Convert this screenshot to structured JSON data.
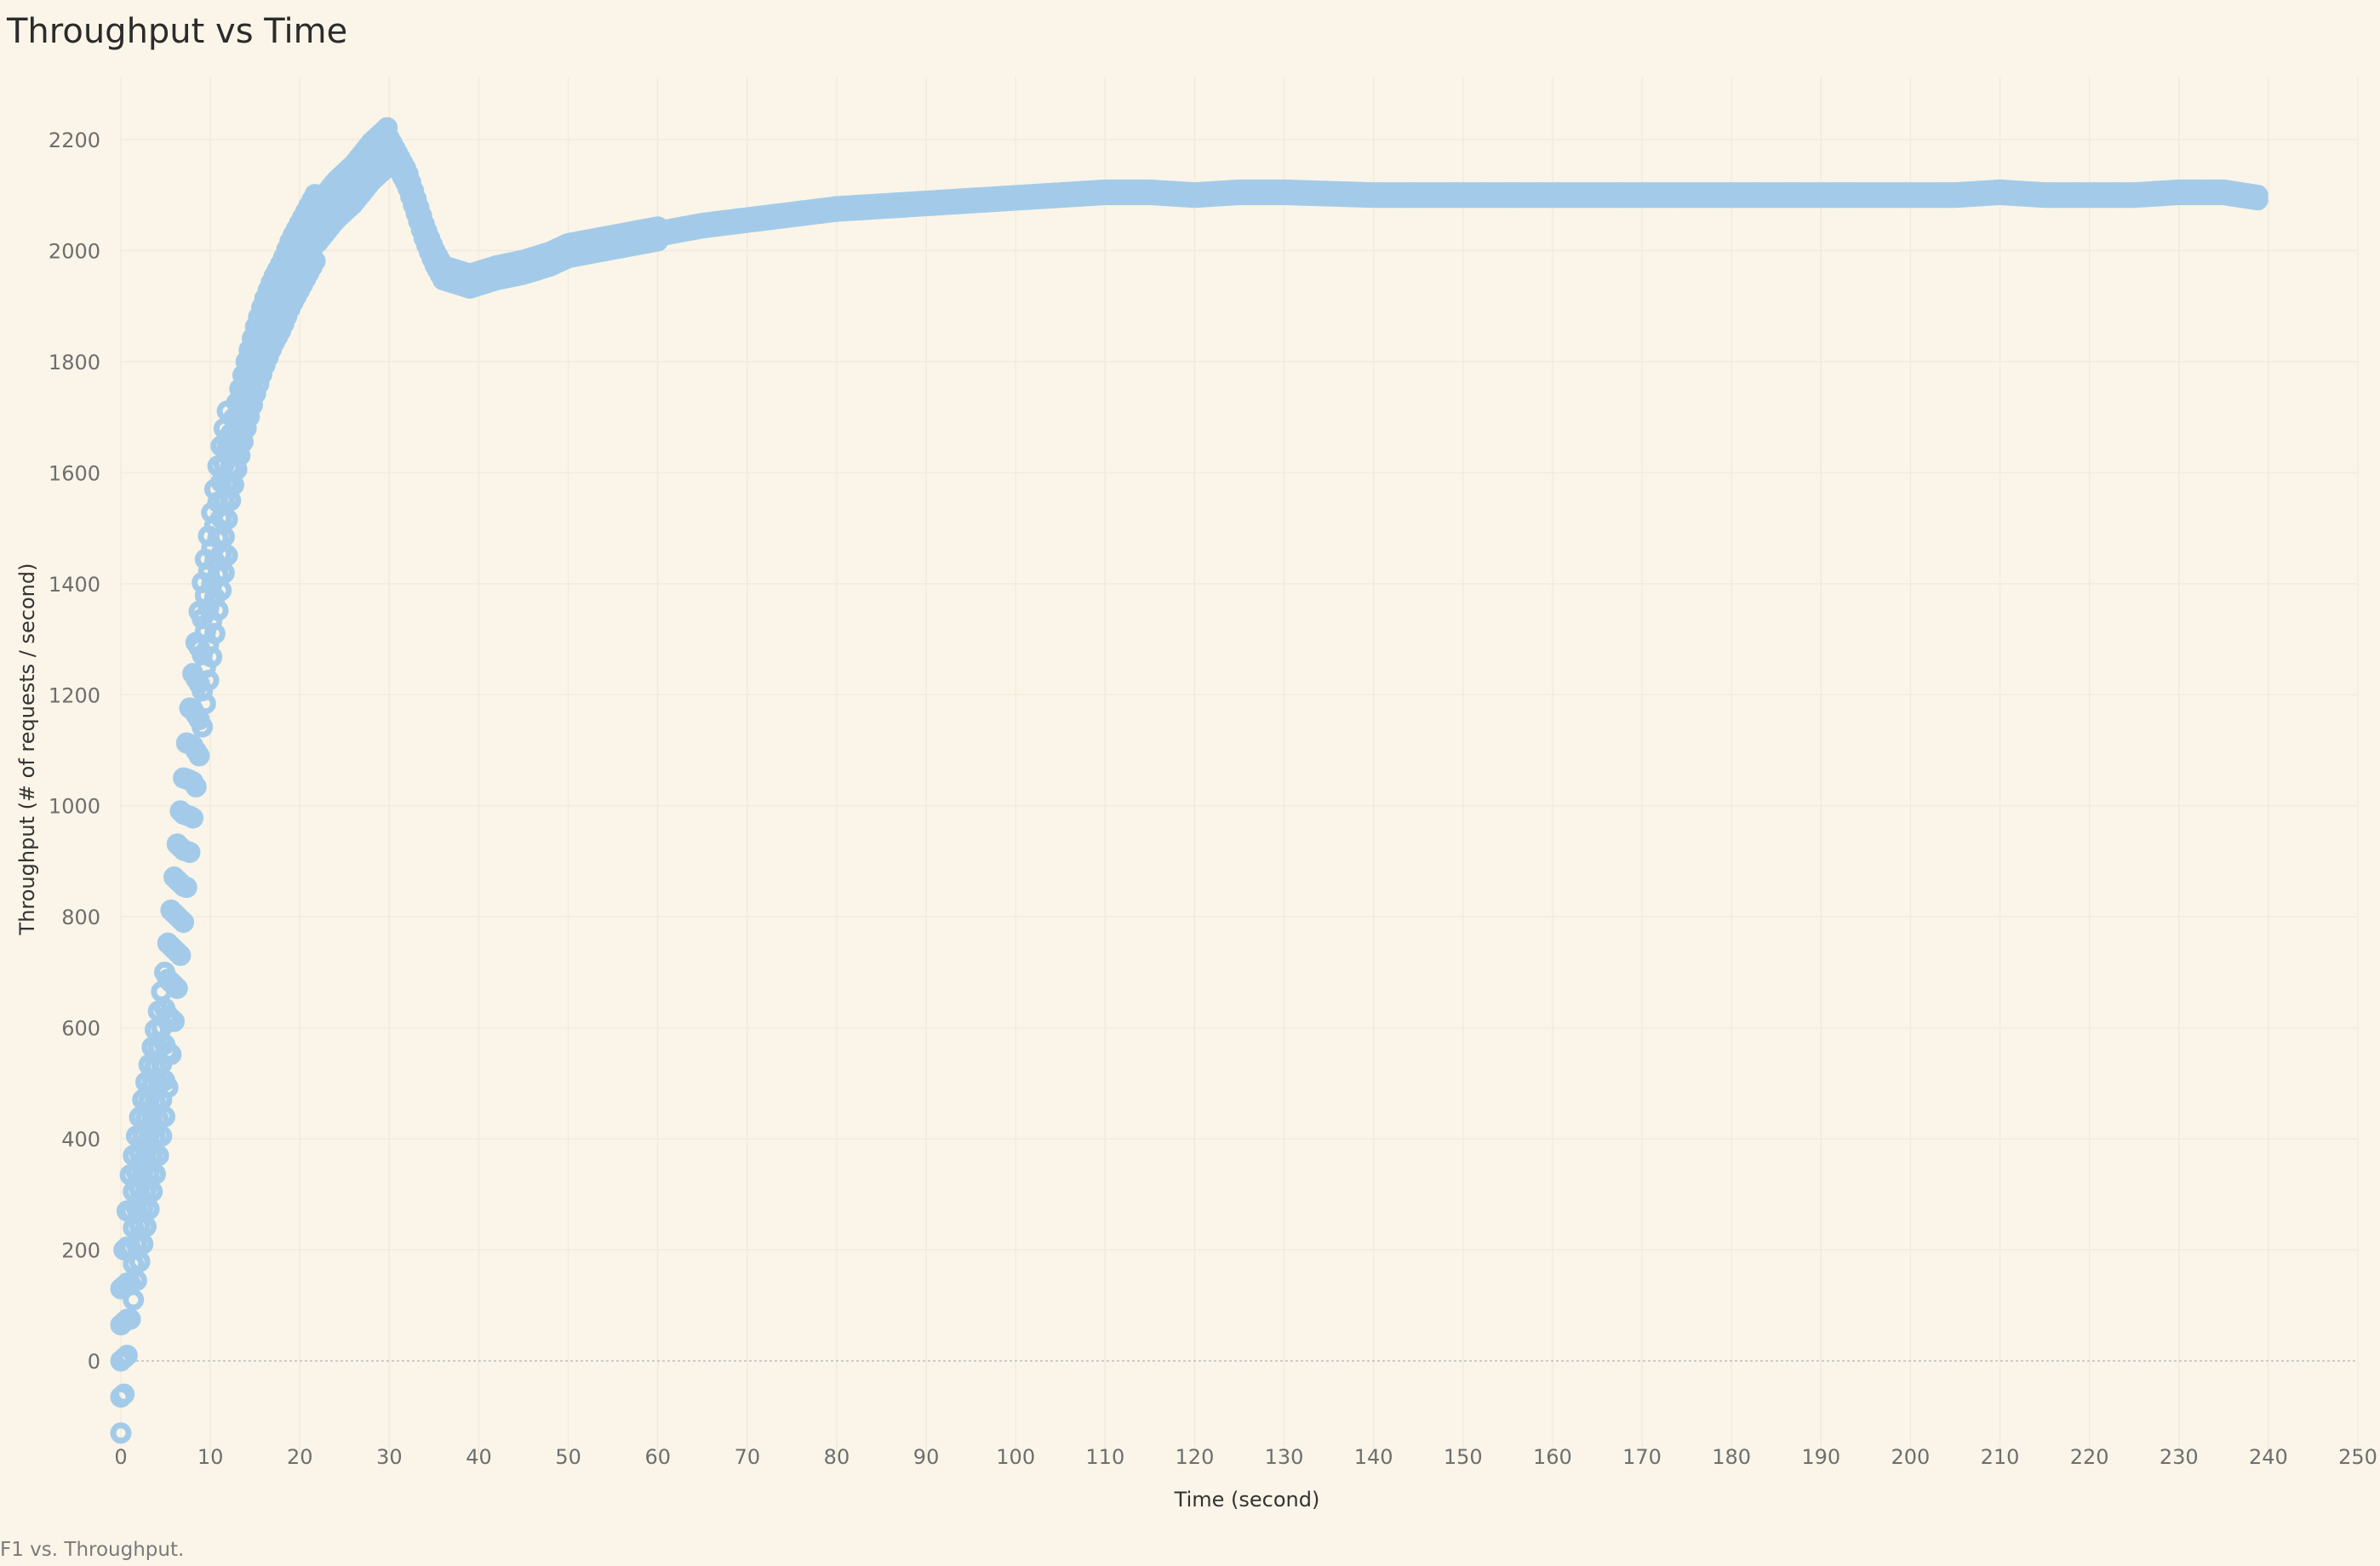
{
  "title": "Throughput vs Time",
  "caption": "F1 vs. Throughput.",
  "colors": {
    "background": "#faf5e8",
    "marker": "#a3cbe9",
    "gridline": "#f0ebdd",
    "zeroline": "#bdbdbd"
  },
  "chart_data": {
    "type": "scatter",
    "title": "Throughput vs Time",
    "xlabel": "Time (second)",
    "ylabel": "Throughput (# of requests / second)",
    "xlim": [
      0,
      250
    ],
    "ylim": [
      -110,
      2330
    ],
    "xticks": [
      0,
      10,
      20,
      30,
      40,
      50,
      60,
      70,
      80,
      90,
      100,
      110,
      120,
      130,
      140,
      150,
      160,
      170,
      180,
      190,
      200,
      210,
      220,
      230,
      240,
      250
    ],
    "yticks": [
      0,
      200,
      400,
      600,
      800,
      1000,
      1200,
      1400,
      1600,
      1800,
      2000,
      2200
    ],
    "grid": true,
    "marker": "hollow-circle",
    "series": [
      {
        "x": [
          0,
          1,
          2,
          3,
          4,
          5,
          6,
          7,
          8,
          9,
          10,
          11,
          12,
          13,
          14,
          15,
          16,
          17,
          18,
          19,
          20,
          21,
          22,
          23,
          24,
          25,
          26,
          27,
          28,
          29,
          30,
          31,
          32,
          33,
          34,
          35,
          36,
          37,
          38,
          39,
          40,
          42,
          45,
          48,
          50,
          55,
          60,
          65,
          70,
          75,
          80,
          85,
          90,
          95,
          100,
          105,
          110,
          115,
          120,
          125,
          130,
          140,
          150,
          160,
          170,
          180,
          190,
          200,
          205,
          210,
          215,
          220,
          225,
          230,
          235,
          239
        ],
        "y": [
          0,
          200,
          300,
          390,
          480,
          580,
          750,
          920,
          1100,
          1260,
          1380,
          1500,
          1590,
          1670,
          1740,
          1800,
          1850,
          1890,
          1920,
          1960,
          1990,
          2020,
          2050,
          2070,
          2090,
          2105,
          2120,
          2140,
          2160,
          2175,
          2190,
          2160,
          2130,
          2080,
          2030,
          1990,
          1960,
          1955,
          1950,
          1945,
          1950,
          1960,
          1970,
          1985,
          2000,
          2015,
          2030,
          2045,
          2055,
          2065,
          2075,
          2080,
          2085,
          2090,
          2095,
          2100,
          2105,
          2105,
          2100,
          2105,
          2105,
          2100,
          2100,
          2100,
          2100,
          2100,
          2100,
          2100,
          2100,
          2105,
          2100,
          2100,
          2100,
          2105,
          2105,
          2095
        ]
      }
    ]
  }
}
